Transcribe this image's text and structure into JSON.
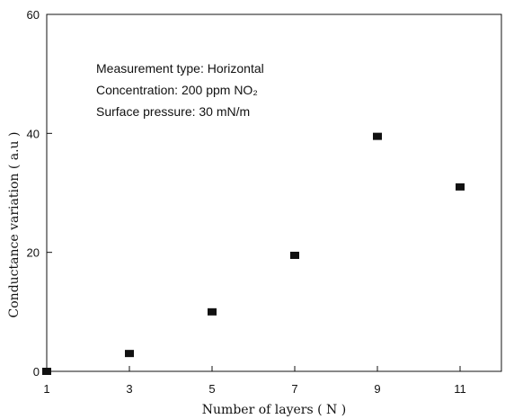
{
  "chart_data": {
    "type": "scatter",
    "xlabel": "Number of layers ( N )",
    "ylabel": "Conductance variation ( a.u )",
    "xlim": [
      1,
      12
    ],
    "ylim": [
      0,
      60
    ],
    "x_ticks": [
      1,
      3,
      5,
      7,
      9,
      11
    ],
    "y_ticks": [
      0,
      20,
      40,
      60
    ],
    "x_tick_labels": [
      "1",
      "3",
      "5",
      "7",
      "9",
      "11"
    ],
    "y_tick_labels": [
      "0",
      "20",
      "40",
      "60"
    ],
    "grid": false,
    "series": [
      {
        "x": [
          1,
          3,
          5,
          7,
          9,
          11
        ],
        "y": [
          0,
          3,
          10,
          19.5,
          39.5,
          31
        ]
      }
    ],
    "annotations": [
      "Measurement type: Horizontal",
      "Concentration: 200 ppm NO₂",
      "Surface pressure: 30 mN/m"
    ],
    "marker_color": "#111111"
  }
}
